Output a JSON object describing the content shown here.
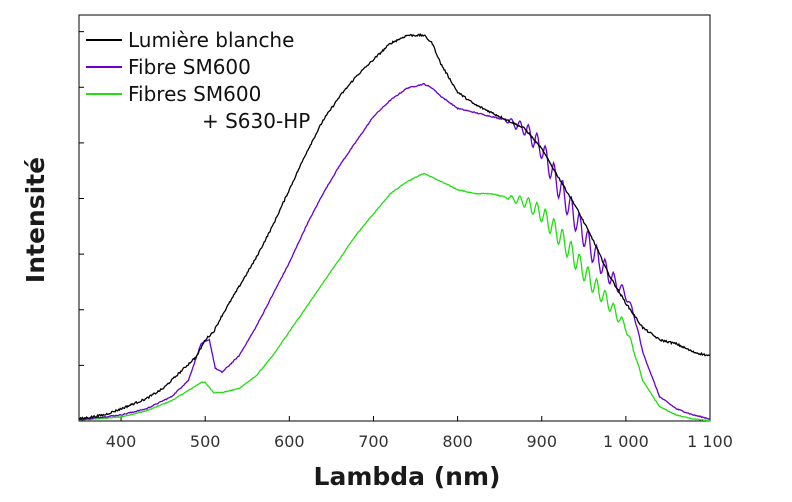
{
  "chart_data": {
    "type": "line",
    "title": "",
    "xlabel": "Lambda (nm)",
    "ylabel": "Intensité",
    "xlim": [
      350,
      1100
    ],
    "ylim": [
      0,
      100
    ],
    "x_ticks": [
      {
        "value": 400,
        "label": "400"
      },
      {
        "value": 500,
        "label": "500"
      },
      {
        "value": 600,
        "label": "600"
      },
      {
        "value": 700,
        "label": "700"
      },
      {
        "value": 800,
        "label": "800"
      },
      {
        "value": 900,
        "label": "900"
      },
      {
        "value": 1000,
        "label": "1 000"
      },
      {
        "value": 1100,
        "label": "1 100"
      }
    ],
    "y_ticks_unlabeled": [
      13.7,
      27.4,
      41.1,
      54.8,
      68.5,
      82.2,
      95.9
    ],
    "grid": false,
    "legend_position": "top-left",
    "series": [
      {
        "name": "Lumière blanche",
        "color": "#000000",
        "x": [
          350,
          380,
          400,
          430,
          450,
          470,
          490,
          500,
          510,
          520,
          540,
          560,
          580,
          600,
          620,
          640,
          660,
          680,
          700,
          720,
          740,
          760,
          770,
          780,
          800,
          820,
          840,
          860,
          880,
          900,
          920,
          940,
          960,
          980,
          1000,
          1020,
          1040,
          1060,
          1080,
          1100
        ],
        "y": [
          0.5,
          1.5,
          3,
          5.5,
          8,
          12,
          16,
          20,
          22,
          26,
          33,
          40,
          48,
          57,
          66,
          74,
          80,
          85,
          89,
          93,
          95,
          95,
          93,
          88,
          81,
          78,
          76,
          74,
          72,
          67,
          60,
          53,
          45,
          36,
          29,
          23,
          20,
          19,
          17,
          16
        ]
      },
      {
        "name": "Fibre SM600",
        "color": "#6600cc",
        "x": [
          350,
          400,
          430,
          460,
          480,
          495,
          505,
          512,
          520,
          540,
          560,
          580,
          600,
          620,
          640,
          660,
          680,
          700,
          720,
          740,
          760,
          770,
          780,
          800,
          820,
          840,
          860,
          880,
          900,
          920,
          940,
          960,
          980,
          1000,
          1010,
          1020,
          1040,
          1060,
          1080,
          1100
        ],
        "y": [
          0.3,
          1.5,
          3,
          6,
          10,
          19,
          20,
          13,
          12,
          16,
          23,
          31,
          39,
          48,
          56,
          63,
          69,
          75,
          79,
          82,
          83,
          82,
          80,
          77,
          76,
          75,
          74,
          72,
          67,
          58,
          50,
          42,
          36,
          31,
          26,
          17,
          6,
          3,
          1.5,
          0.5
        ]
      },
      {
        "name": "Fibres SM600 + S630-HP",
        "label_line1": "Fibres SM600",
        "label_line2": "+ S630-HP",
        "color": "#22dd11",
        "x": [
          350,
          400,
          430,
          460,
          480,
          495,
          500,
          510,
          520,
          540,
          560,
          580,
          600,
          620,
          640,
          660,
          680,
          700,
          720,
          740,
          760,
          770,
          780,
          800,
          820,
          840,
          860,
          880,
          900,
          920,
          940,
          960,
          980,
          1000,
          1010,
          1020,
          1040,
          1060,
          1080,
          1100
        ],
        "y": [
          0.2,
          1,
          2.5,
          5,
          7.5,
          9.5,
          9.5,
          7,
          7,
          8,
          11,
          16,
          22,
          28,
          34,
          40,
          46,
          51,
          56,
          59,
          61,
          60,
          59,
          57,
          56,
          56,
          55,
          54,
          51,
          46,
          40,
          34,
          29,
          23,
          17,
          10,
          3.5,
          1.5,
          0.5,
          0.1
        ]
      }
    ]
  }
}
